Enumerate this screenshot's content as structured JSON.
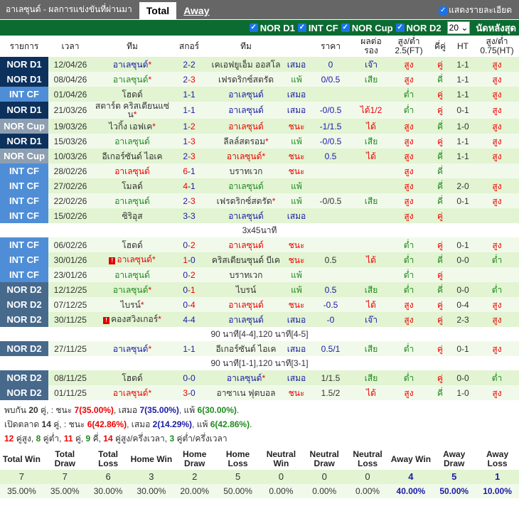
{
  "header": {
    "title": "อาเลซุนด์ - ผลการแข่งขันที่ผ่านมา",
    "tabs": [
      "Total",
      "Away"
    ],
    "show_detail": "แสดงรายละเอียด"
  },
  "filters": {
    "leagues": [
      "NOR D1",
      "INT CF",
      "NOR Cup",
      "NOR D2"
    ],
    "count": "20",
    "count_suffix": "นัดหลังสุด"
  },
  "columns": [
    "รายการ",
    "เวลา",
    "ทีม",
    "สกอร์",
    "ทีม",
    "",
    "ราคา",
    "ผลต่อรอง",
    "สูง/ต่ำ 2.5(FT)",
    "คี่คู่",
    "HT",
    "สูง/ต่ำ 0.75(HT)"
  ],
  "colors": {
    "NOR D1": "#0c315c",
    "INT CF": "#4f8ed6",
    "NOR Cup": "#8e9fb2",
    "NOR D2": "#47698c",
    "win": "#e00000",
    "draw": "#1a1aa8",
    "loss": "#1e8a1e"
  },
  "rows": [
    {
      "lg": "NOR D1",
      "d": "12/04/26",
      "h": "อาเลซุนด์",
      "hs": true,
      "hc": "draw",
      "sh": "2",
      "sa": "2",
      "a": "เคเอฟยูเอ็ม ออสโล",
      "as": false,
      "ac": "",
      "res": "เสมอ",
      "pr": "0",
      "pc": "blue",
      "hd": "เจ๊า",
      "ou": "สูง",
      "oe": "คู่",
      "ht": "1-1",
      "ou2": "สูง"
    },
    {
      "lg": "NOR D1",
      "d": "08/04/26",
      "h": "อาเลซุนด์",
      "hs": true,
      "hc": "loss",
      "sh": "2",
      "sa": "3",
      "a": "เฟรดริกซ์สตรัด",
      "as": false,
      "ac": "",
      "res": "แพ้",
      "pr": "0/0.5",
      "pc": "blue",
      "hd": "เสีย",
      "ou": "สูง",
      "oe": "คี่",
      "ht": "1-1",
      "ou2": "สูง"
    },
    {
      "lg": "INT CF",
      "d": "01/04/26",
      "h": "โฮดด์",
      "hs": false,
      "hc": "",
      "sh": "1",
      "sa": "1",
      "a": "อาเลซุนด์",
      "as": false,
      "ac": "draw",
      "res": "เสมอ",
      "pr": "",
      "pc": "blue",
      "hd": "",
      "ou": "ต่ำ",
      "oe": "คู่",
      "ht": "1-1",
      "ou2": "สูง"
    },
    {
      "lg": "NOR D1",
      "d": "21/03/26",
      "h": "สตาร์ต คริสเตียนแซ่น",
      "hs": true,
      "hc": "",
      "sh": "1",
      "sa": "1",
      "a": "อาเลซุนด์",
      "as": false,
      "ac": "draw",
      "res": "เสมอ",
      "pr": "-0/0.5",
      "pc": "blue",
      "hd": "ได้1/2",
      "ou": "ต่ำ",
      "oe": "คู่",
      "ht": "0-1",
      "ou2": "สูง"
    },
    {
      "lg": "NOR Cup",
      "d": "19/03/26",
      "h": "ไวกิ้ง เอฟเค",
      "hs": true,
      "hc": "",
      "sh": "1",
      "sa": "2",
      "a": "อาเลซุนด์",
      "as": false,
      "ac": "win",
      "res": "ชนะ",
      "pr": "-1/1.5",
      "pc": "blue",
      "hd": "ได้",
      "ou": "สูง",
      "oe": "คี่",
      "ht": "1-0",
      "ou2": "สูง"
    },
    {
      "lg": "NOR D1",
      "d": "15/03/26",
      "h": "อาเลซุนด์",
      "hs": false,
      "hc": "loss",
      "sh": "1",
      "sa": "3",
      "a": "ลีลล์สตรอม",
      "as": true,
      "ac": "",
      "res": "แพ้",
      "pr": "-0/0.5",
      "pc": "blue",
      "hd": "เสีย",
      "ou": "สูง",
      "oe": "คู่",
      "ht": "1-1",
      "ou2": "สูง"
    },
    {
      "lg": "NOR Cup",
      "d": "10/03/26",
      "h": "อีเกอร์ซันด์ ไอเค",
      "hs": false,
      "hc": "",
      "sh": "2",
      "sa": "3",
      "a": "อาเลซุนด์",
      "as": true,
      "ac": "win",
      "res": "ชนะ",
      "pr": "0.5",
      "pc": "blue",
      "hd": "ได้",
      "ou": "สูง",
      "oe": "คี่",
      "ht": "1-1",
      "ou2": "สูง"
    },
    {
      "lg": "INT CF",
      "d": "28/02/26",
      "h": "อาเลซุนด์",
      "hs": false,
      "hc": "win",
      "sh": "6",
      "sa": "1",
      "a": "บราทเวก",
      "as": false,
      "ac": "",
      "res": "ชนะ",
      "pr": "",
      "pc": "blue",
      "hd": "",
      "ou": "สูง",
      "oe": "คี่",
      "ht": "",
      "ou2": ""
    },
    {
      "lg": "INT CF",
      "d": "27/02/26",
      "h": "โมลด์",
      "hs": false,
      "hc": "",
      "sh": "4",
      "sa": "1",
      "a": "อาเลซุนด์",
      "as": false,
      "ac": "loss",
      "res": "แพ้",
      "pr": "",
      "pc": "blue",
      "hd": "",
      "ou": "สูง",
      "oe": "คี่",
      "ht": "2-0",
      "ou2": "สูง"
    },
    {
      "lg": "INT CF",
      "d": "22/02/26",
      "h": "อาเลซุนด์",
      "hs": false,
      "hc": "loss",
      "sh": "2",
      "sa": "3",
      "a": "เฟรดริกซ์สตรัด",
      "as": true,
      "ac": "",
      "res": "แพ้",
      "pr": "-0/0.5",
      "pc": "black",
      "hd": "เสีย",
      "ou": "สูง",
      "oe": "คี่",
      "ht": "0-1",
      "ou2": "สูง"
    },
    {
      "lg": "INT CF",
      "d": "15/02/26",
      "h": "ซิริอุส",
      "hs": false,
      "hc": "",
      "sh": "3",
      "sa": "3",
      "a": "อาเลซุนด์",
      "as": false,
      "ac": "draw",
      "res": "เสมอ",
      "pr": "",
      "pc": "blue",
      "hd": "",
      "ou": "สูง",
      "oe": "คู่",
      "ht": "",
      "ou2": "",
      "note": "3x45นาที"
    },
    {
      "lg": "INT CF",
      "d": "06/02/26",
      "h": "โฮดด์",
      "hs": false,
      "hc": "",
      "sh": "0",
      "sa": "2",
      "a": "อาเลซุนด์",
      "as": false,
      "ac": "win",
      "res": "ชนะ",
      "pr": "",
      "pc": "blue",
      "hd": "",
      "ou": "ต่ำ",
      "oe": "คู่",
      "ht": "0-1",
      "ou2": "สูง"
    },
    {
      "lg": "INT CF",
      "d": "30/01/26",
      "h": "อาเลซุนด์",
      "hw": true,
      "hs": true,
      "hc": "win",
      "sh": "1",
      "sa": "0",
      "a": "คริสเตียนซุนด์ บีเค",
      "as": false,
      "ac": "",
      "res": "ชนะ",
      "pr": "0.5",
      "pc": "black",
      "hd": "ได้",
      "ou": "ต่ำ",
      "oe": "คี่",
      "ht": "0-0",
      "ou2": "ต่ำ"
    },
    {
      "lg": "INT CF",
      "d": "23/01/26",
      "h": "อาเลซุนด์",
      "hs": false,
      "hc": "loss",
      "sh": "0",
      "sa": "2",
      "a": "บราทเวก",
      "as": false,
      "ac": "",
      "res": "แพ้",
      "pr": "",
      "pc": "blue",
      "hd": "",
      "ou": "ต่ำ",
      "oe": "คู่",
      "ht": "",
      "ou2": ""
    },
    {
      "lg": "NOR D2",
      "d": "12/12/25",
      "h": "อาเลซุนด์",
      "hs": true,
      "hc": "loss",
      "sh": "0",
      "sa": "1",
      "a": "ไบรน์",
      "as": false,
      "ac": "",
      "res": "แพ้",
      "pr": "0.5",
      "pc": "blue",
      "hd": "เสีย",
      "ou": "ต่ำ",
      "oe": "คี่",
      "ht": "0-0",
      "ou2": "ต่ำ"
    },
    {
      "lg": "NOR D2",
      "d": "07/12/25",
      "h": "ไบรน์",
      "hs": true,
      "hc": "",
      "sh": "0",
      "sa": "4",
      "a": "อาเลซุนด์",
      "as": false,
      "ac": "win",
      "res": "ชนะ",
      "pr": "-0.5",
      "pc": "blue",
      "hd": "ได้",
      "ou": "สูง",
      "oe": "คู่",
      "ht": "0-4",
      "ou2": "สูง"
    },
    {
      "lg": "NOR D2",
      "d": "30/11/25",
      "h": "คองสวิงเกอร์",
      "hw": true,
      "hs": true,
      "hc": "",
      "sh": "4",
      "sa": "4",
      "a": "อาเลซุนด์",
      "as": false,
      "ac": "draw",
      "res": "เสมอ",
      "pr": "-0",
      "pc": "blue",
      "hd": "เจ๊า",
      "ou": "สูง",
      "oe": "คู่",
      "ht": "2-3",
      "ou2": "สูง",
      "note": "90 นาที[4-4],120 นาที[4-5]"
    },
    {
      "lg": "NOR D2",
      "d": "27/11/25",
      "h": "อาเลซุนด์",
      "hs": true,
      "hc": "draw",
      "sh": "1",
      "sa": "1",
      "a": "อีเกอร์ซันด์ ไอเค",
      "as": false,
      "ac": "",
      "res": "เสมอ",
      "pr": "0.5/1",
      "pc": "blue",
      "hd": "เสีย",
      "ou": "ต่ำ",
      "oe": "คู่",
      "ht": "0-1",
      "ou2": "สูง",
      "note": "90 นาที[1-1],120 นาที[3-1]"
    },
    {
      "lg": "NOR D2",
      "d": "08/11/25",
      "h": "โฮดด์",
      "hs": false,
      "hc": "",
      "sh": "0",
      "sa": "0",
      "a": "อาเลซุนด์",
      "as": true,
      "ac": "draw",
      "res": "เสมอ",
      "pr": "1/1.5",
      "pc": "black",
      "hd": "เสีย",
      "ou": "ต่ำ",
      "oe": "คู่",
      "ht": "0-0",
      "ou2": "ต่ำ"
    },
    {
      "lg": "NOR D2",
      "d": "01/11/25",
      "h": "อาเลซุนด์",
      "hs": true,
      "hc": "win",
      "sh": "3",
      "sa": "0",
      "a": "อาซาเน ฟุตบอล",
      "as": false,
      "ac": "",
      "res": "ชนะ",
      "pr": "1.5/2",
      "pc": "black",
      "hd": "ได้",
      "ou": "สูง",
      "oe": "คี่",
      "ht": "1-0",
      "ou2": "สูง"
    }
  ],
  "summary": {
    "line1": {
      "a": "พบกัน ",
      "n": "20",
      "b": " คู่, : ชนะ ",
      "w": "7",
      "wp": "(35.00%)",
      "c": ", เสมอ ",
      "d": "7",
      "dp": "(35.00%)",
      "e": ", แพ้ ",
      "l": "6",
      "lp": "(30.00%)",
      "f": "."
    },
    "line2": {
      "a": "เปิดตลาด ",
      "n": "14",
      "b": " คู่, : ชนะ ",
      "w": "6",
      "wp": "(42.86%)",
      "c": ", เสมอ ",
      "d": "2",
      "dp": "(14.29%)",
      "e": ", แพ้ ",
      "l": "6",
      "lp": "(42.86%)",
      "f": "."
    },
    "line3": [
      {
        "n": "12",
        "t": " คู่สูง, ",
        "c": "red"
      },
      {
        "n": "8",
        "t": " คู่ต่ำ, ",
        "c": "green"
      },
      {
        "n": "11",
        "t": " คู่, ",
        "c": "red"
      },
      {
        "n": "9",
        "t": " คี่, ",
        "c": "green"
      },
      {
        "n": "14",
        "t": " คู่สูง/ครึ่งเวลา, ",
        "c": "red"
      },
      {
        "n": "3",
        "t": " คู่ต่ำ/ครึ่งเวลา",
        "c": "green"
      }
    ]
  },
  "stats": {
    "headers": [
      "Total Win",
      "Total Draw",
      "Total Loss",
      "Home Win",
      "Home Draw",
      "Home Loss",
      "Neutral Win",
      "Neutral Draw",
      "Neutral Loss",
      "Away Win",
      "Away Draw",
      "Away Loss"
    ],
    "values": [
      "7",
      "7",
      "6",
      "3",
      "2",
      "5",
      "0",
      "0",
      "0",
      "4",
      "5",
      "1"
    ],
    "percents": [
      "35.00%",
      "35.00%",
      "30.00%",
      "30.00%",
      "20.00%",
      "50.00%",
      "0.00%",
      "0.00%",
      "0.00%",
      "40.00%",
      "50.00%",
      "10.00%"
    ]
  }
}
